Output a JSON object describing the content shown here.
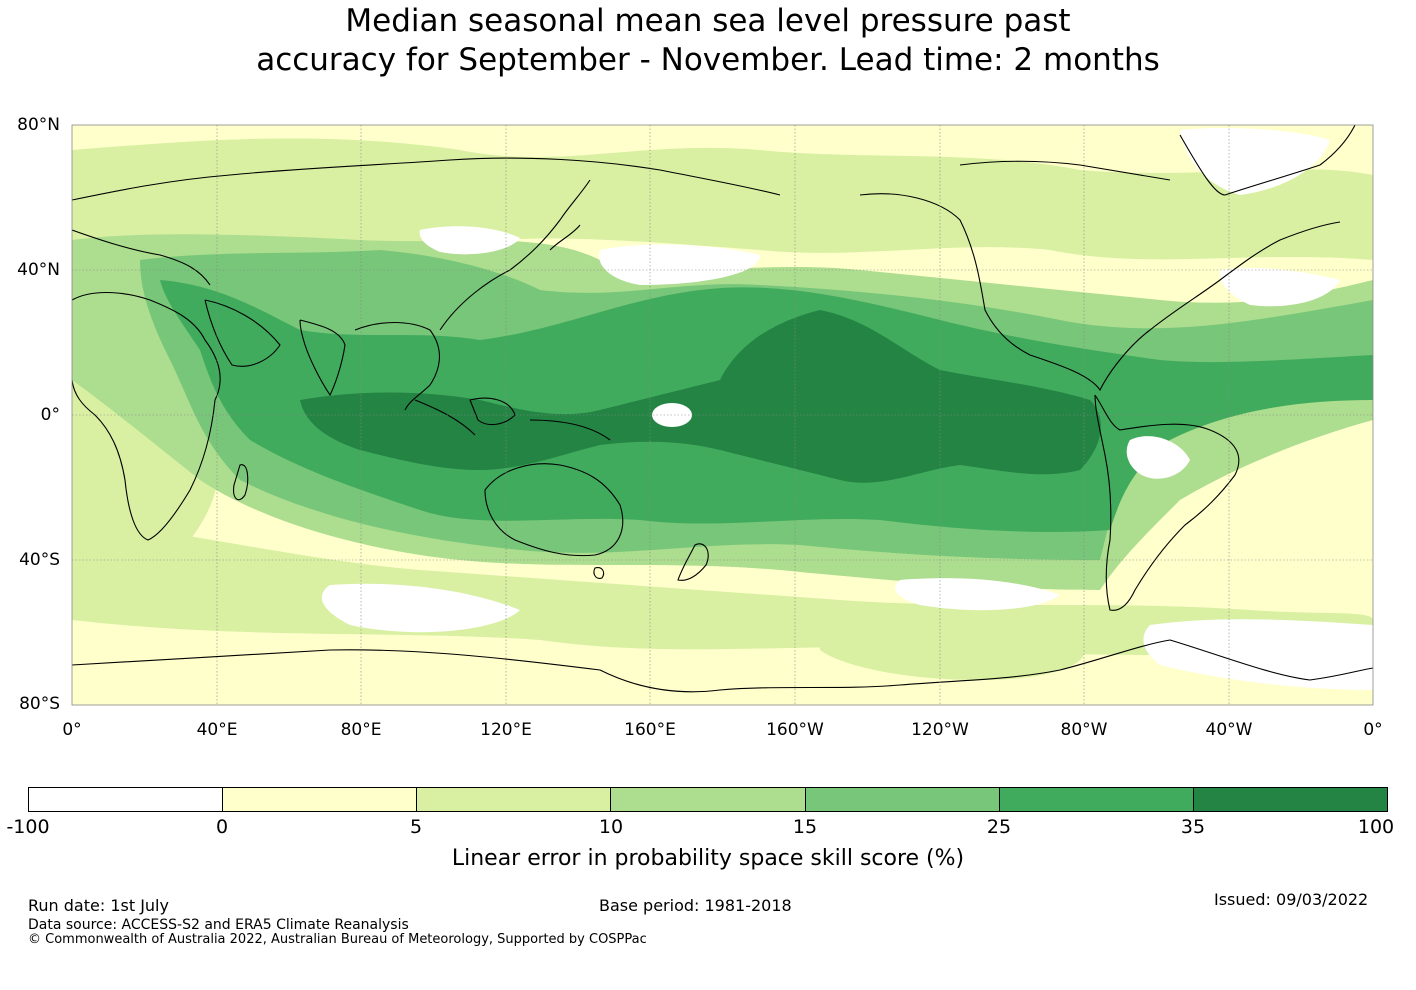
{
  "title": {
    "line1": "Median seasonal mean sea level pressure past",
    "line2": "accuracy for September - November. Lead time: 2 months"
  },
  "map": {
    "lat_labels": [
      "80°N",
      "40°N",
      "0°",
      "40°S",
      "80°S"
    ],
    "lon_labels": [
      "0°",
      "40°E",
      "80°E",
      "120°E",
      "160°E",
      "160°W",
      "120°W",
      "80°W",
      "40°W",
      "0°"
    ],
    "colors": {
      "below0": "#ffffff",
      "c0_5": "#ffffcc",
      "c5_10": "#d9f0a3",
      "c10_15": "#addd8e",
      "c15_25": "#78c679",
      "c25_35": "#41ab5d",
      "c35_100": "#238443",
      "coast": "#000000",
      "grid": "#888888"
    }
  },
  "colorbar": {
    "ticks": [
      "-100",
      "0",
      "5",
      "10",
      "15",
      "25",
      "35",
      "100"
    ],
    "colors": [
      "#ffffff",
      "#ffffcc",
      "#d9f0a3",
      "#addd8e",
      "#78c679",
      "#41ab5d",
      "#238443"
    ],
    "label": "Linear error in probability space skill score (%)"
  },
  "footer": {
    "run_date": "Run date: 1st July",
    "base_period": "Base period: 1981-2018",
    "issued": "Issued: 09/03/2022",
    "data_source": "Data source: ACCESS-S2 and ERA5 Climate Reanalysis",
    "copyright": "© Commonwealth of Australia 2022, Australian Bureau of Meteorology, Supported by COSPPac"
  }
}
